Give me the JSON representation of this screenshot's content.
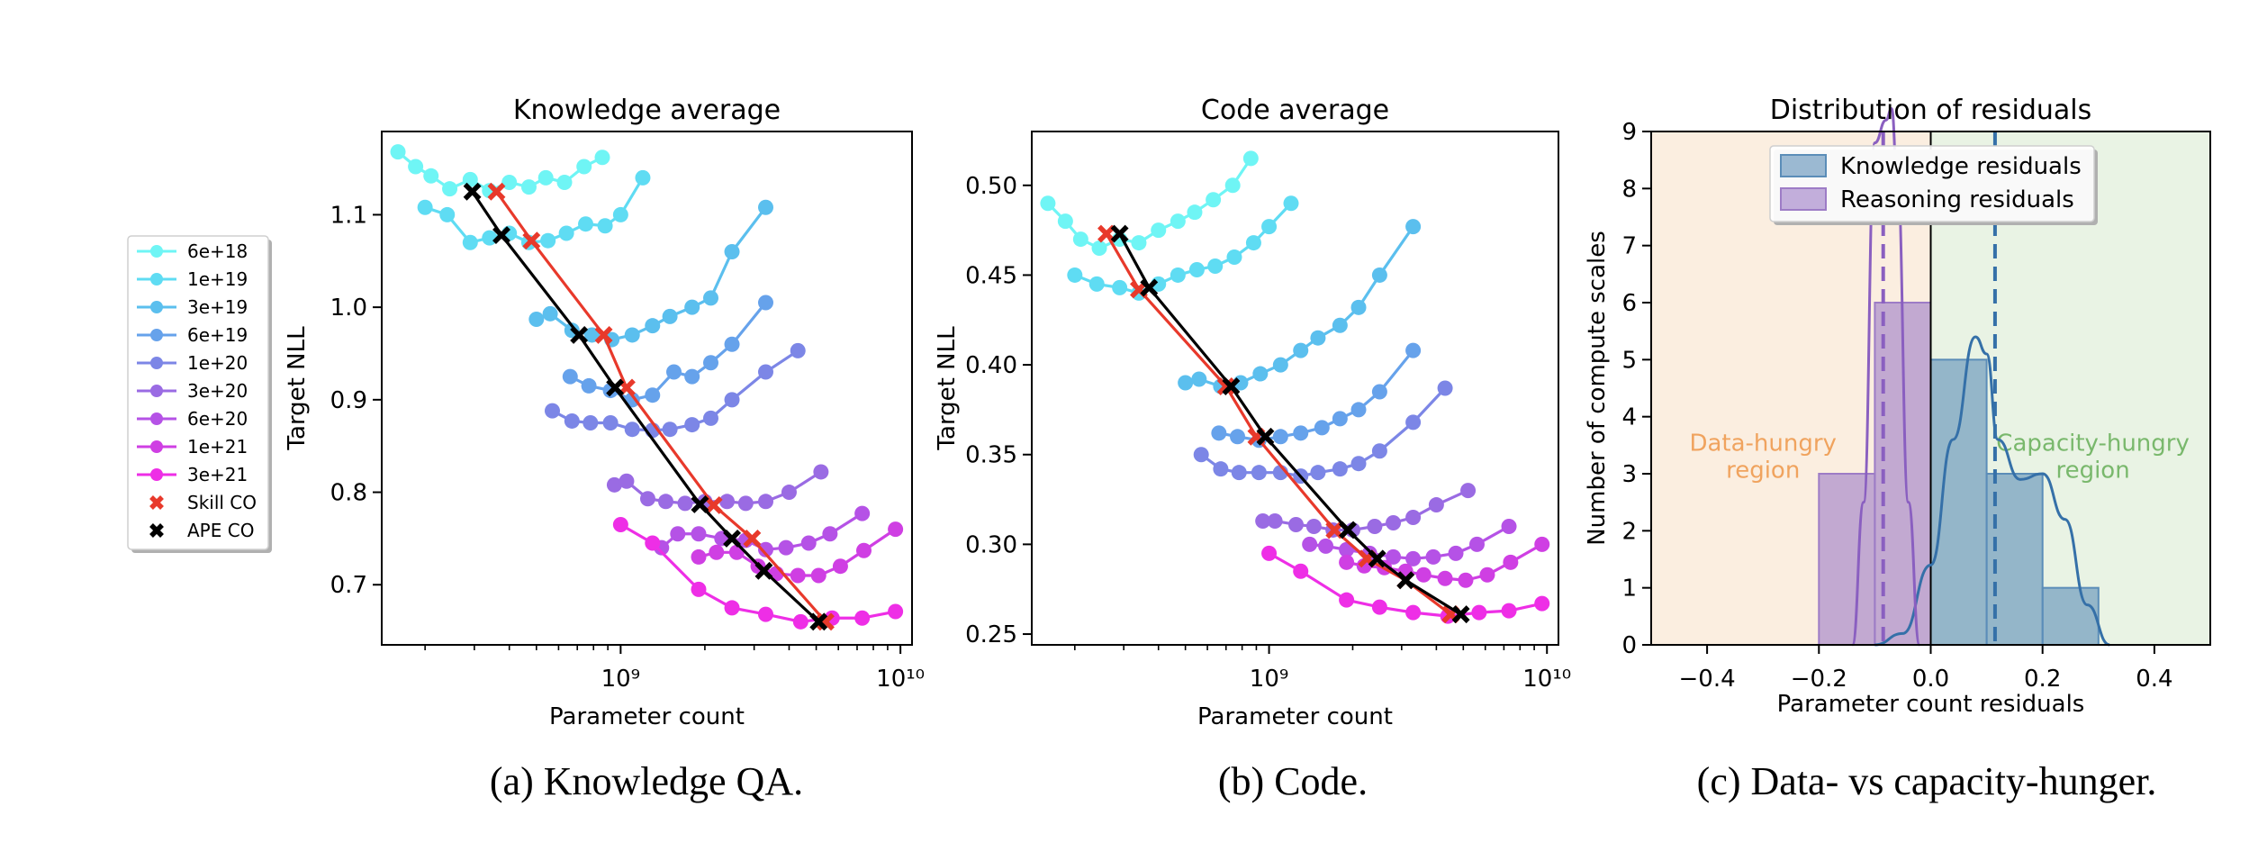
{
  "legend": {
    "entries": [
      {
        "label": "6e+18",
        "color": "#6ff5f5",
        "marker": "circle"
      },
      {
        "label": "1e+19",
        "color": "#5fdcf3",
        "marker": "circle"
      },
      {
        "label": "3e+19",
        "color": "#5bbfee",
        "marker": "circle"
      },
      {
        "label": "6e+19",
        "color": "#66a2eb",
        "marker": "circle"
      },
      {
        "label": "1e+20",
        "color": "#7c86e6",
        "marker": "circle"
      },
      {
        "label": "3e+20",
        "color": "#9a6be3",
        "marker": "circle"
      },
      {
        "label": "6e+20",
        "color": "#b552e6",
        "marker": "circle"
      },
      {
        "label": "1e+21",
        "color": "#cf3fe3",
        "marker": "circle"
      },
      {
        "label": "3e+21",
        "color": "#ee2ee6",
        "marker": "circle"
      },
      {
        "label": "Skill CO",
        "color": "#e8392b",
        "marker": "x"
      },
      {
        "label": "APE CO",
        "color": "#000000",
        "marker": "x"
      }
    ]
  },
  "captions": {
    "a": "(a) Knowledge QA.",
    "b": "(b) Code.",
    "c": "(c) Data- vs capacity-hunger."
  },
  "chart_data": [
    {
      "type": "line",
      "title": "Knowledge average",
      "xlabel": "Parameter count",
      "ylabel": "Target NLL",
      "xscale": "log",
      "xlim": [
        140000000.0,
        11000000000.0
      ],
      "ylim": [
        0.635,
        1.19
      ],
      "xticks": [
        {
          "v": 1000000000.0,
          "l": "10⁹"
        },
        {
          "v": 10000000000.0,
          "l": "10¹⁰"
        }
      ],
      "yticks": [
        {
          "v": 0.7,
          "l": "0.7"
        },
        {
          "v": 0.8,
          "l": "0.8"
        },
        {
          "v": 0.9,
          "l": "0.9"
        },
        {
          "v": 1.0,
          "l": "1.0"
        },
        {
          "v": 1.1,
          "l": "1.1"
        }
      ],
      "series": [
        {
          "name": "6e+18",
          "color": "#6ff5f5",
          "x": [
            160000000.0,
            185000000.0,
            210000000.0,
            245000000.0,
            290000000.0,
            340000000.0,
            400000000.0,
            470000000.0,
            540000000.0,
            630000000.0,
            740000000.0,
            860000000.0
          ],
          "y": [
            1.168,
            1.152,
            1.142,
            1.128,
            1.138,
            1.126,
            1.135,
            1.13,
            1.14,
            1.135,
            1.152,
            1.162
          ]
        },
        {
          "name": "1e+19",
          "color": "#5fdcf3",
          "x": [
            200000000.0,
            240000000.0,
            290000000.0,
            340000000.0,
            400000000.0,
            470000000.0,
            550000000.0,
            640000000.0,
            750000000.0,
            880000000.0,
            1000000000.0,
            1200000000.0
          ],
          "y": [
            1.108,
            1.1,
            1.07,
            1.075,
            1.08,
            1.07,
            1.072,
            1.08,
            1.09,
            1.088,
            1.1,
            1.14
          ]
        },
        {
          "name": "3e+19",
          "color": "#5bbfee",
          "x": [
            500000000.0,
            560000000.0,
            670000000.0,
            790000000.0,
            930000000.0,
            1100000000.0,
            1300000000.0,
            1500000000.0,
            1800000000.0,
            2100000000.0,
            2500000000.0,
            3300000000.0
          ],
          "y": [
            0.987,
            0.993,
            0.975,
            0.97,
            0.965,
            0.97,
            0.98,
            0.99,
            1.0,
            1.01,
            1.06,
            1.108
          ]
        },
        {
          "name": "6e+19",
          "color": "#66a2eb",
          "x": [
            660000000.0,
            770000000.0,
            920000000.0,
            1100000000.0,
            1300000000.0,
            1550000000.0,
            1800000000.0,
            2100000000.0,
            2500000000.0,
            3300000000.0
          ],
          "y": [
            0.925,
            0.915,
            0.91,
            0.9,
            0.905,
            0.93,
            0.925,
            0.94,
            0.96,
            1.005
          ]
        },
        {
          "name": "1e+20",
          "color": "#7c86e6",
          "x": [
            570000000.0,
            670000000.0,
            780000000.0,
            920000000.0,
            1100000000.0,
            1300000000.0,
            1500000000.0,
            1800000000.0,
            2100000000.0,
            2500000000.0,
            3300000000.0,
            4300000000.0
          ],
          "y": [
            0.888,
            0.877,
            0.875,
            0.875,
            0.868,
            0.867,
            0.868,
            0.873,
            0.88,
            0.9,
            0.93,
            0.953
          ]
        },
        {
          "name": "3e+20",
          "color": "#9a6be3",
          "x": [
            950000000.0,
            1050000000.0,
            1250000000.0,
            1450000000.0,
            1700000000.0,
            2000000000.0,
            2400000000.0,
            2800000000.0,
            3300000000.0,
            4000000000.0,
            5200000000.0
          ],
          "y": [
            0.808,
            0.812,
            0.793,
            0.79,
            0.788,
            0.79,
            0.79,
            0.788,
            0.79,
            0.8,
            0.822
          ]
        },
        {
          "name": "6e+20",
          "color": "#b552e6",
          "x": [
            1400000000.0,
            1600000000.0,
            1900000000.0,
            2300000000.0,
            2800000000.0,
            3300000000.0,
            3900000000.0,
            4700000000.0,
            5600000000.0,
            7300000000.0
          ],
          "y": [
            0.74,
            0.755,
            0.755,
            0.75,
            0.748,
            0.738,
            0.74,
            0.745,
            0.755,
            0.777
          ]
        },
        {
          "name": "1e+21",
          "color": "#cf3fe3",
          "x": [
            1900000000.0,
            2200000000.0,
            2600000000.0,
            3100000000.0,
            3600000000.0,
            4300000000.0,
            5100000000.0,
            6100000000.0,
            7400000000.0,
            9600000000.0
          ],
          "y": [
            0.73,
            0.735,
            0.735,
            0.72,
            0.712,
            0.71,
            0.71,
            0.72,
            0.737,
            0.76
          ]
        },
        {
          "name": "3e+21",
          "color": "#ee2ee6",
          "x": [
            1000000000.0,
            1300000000.0,
            1900000000.0,
            2500000000.0,
            3300000000.0,
            4400000000.0,
            5700000000.0,
            7300000000.0,
            9600000000.0
          ],
          "y": [
            0.765,
            0.745,
            0.695,
            0.675,
            0.668,
            0.66,
            0.664,
            0.664,
            0.671
          ]
        }
      ],
      "optimal_lines": [
        {
          "name": "Skill CO",
          "color": "#e8392b",
          "x": [
            360000000.0,
            480000000.0,
            870000000.0,
            1050000000.0,
            2150000000.0,
            2950000000.0,
            5400000000.0
          ],
          "y": [
            1.125,
            1.072,
            0.97,
            0.913,
            0.786,
            0.75,
            0.66
          ]
        },
        {
          "name": "APE CO",
          "color": "#000000",
          "x": [
            295000000.0,
            375000000.0,
            710000000.0,
            955000000.0,
            1920000000.0,
            2500000000.0,
            3250000000.0,
            5100000000.0
          ],
          "y": [
            1.125,
            1.078,
            0.97,
            0.913,
            0.787,
            0.75,
            0.715,
            0.66
          ]
        }
      ]
    },
    {
      "type": "line",
      "title": "Code average",
      "xlabel": "Parameter count",
      "ylabel": "Target NLL",
      "xscale": "log",
      "xlim": [
        140000000.0,
        11000000000.0
      ],
      "ylim": [
        0.244,
        0.53
      ],
      "xticks": [
        {
          "v": 1000000000.0,
          "l": "10⁹"
        },
        {
          "v": 10000000000.0,
          "l": "10¹⁰"
        }
      ],
      "yticks": [
        {
          "v": 0.25,
          "l": "0.25"
        },
        {
          "v": 0.3,
          "l": "0.30"
        },
        {
          "v": 0.35,
          "l": "0.35"
        },
        {
          "v": 0.4,
          "l": "0.40"
        },
        {
          "v": 0.45,
          "l": "0.45"
        },
        {
          "v": 0.5,
          "l": "0.50"
        }
      ],
      "series": [
        {
          "name": "6e+18",
          "color": "#6ff5f5",
          "x": [
            160000000.0,
            185000000.0,
            210000000.0,
            245000000.0,
            290000000.0,
            340000000.0,
            400000000.0,
            470000000.0,
            540000000.0,
            630000000.0,
            740000000.0,
            860000000.0
          ],
          "y": [
            0.49,
            0.48,
            0.47,
            0.465,
            0.47,
            0.468,
            0.475,
            0.48,
            0.485,
            0.492,
            0.5,
            0.515
          ]
        },
        {
          "name": "1e+19",
          "color": "#5fdcf3",
          "x": [
            200000000.0,
            240000000.0,
            290000000.0,
            340000000.0,
            400000000.0,
            470000000.0,
            550000000.0,
            640000000.0,
            750000000.0,
            880000000.0,
            1000000000.0,
            1200000000.0
          ],
          "y": [
            0.45,
            0.445,
            0.443,
            0.44,
            0.445,
            0.45,
            0.453,
            0.455,
            0.46,
            0.468,
            0.477,
            0.49
          ]
        },
        {
          "name": "3e+19",
          "color": "#5bbfee",
          "x": [
            500000000.0,
            560000000.0,
            670000000.0,
            790000000.0,
            930000000.0,
            1100000000.0,
            1300000000.0,
            1500000000.0,
            1800000000.0,
            2100000000.0,
            2500000000.0,
            3300000000.0
          ],
          "y": [
            0.39,
            0.392,
            0.388,
            0.39,
            0.395,
            0.4,
            0.408,
            0.415,
            0.422,
            0.432,
            0.45,
            0.477
          ]
        },
        {
          "name": "6e+19",
          "color": "#66a2eb",
          "x": [
            660000000.0,
            770000000.0,
            920000000.0,
            1100000000.0,
            1300000000.0,
            1550000000.0,
            1800000000.0,
            2100000000.0,
            2500000000.0,
            3300000000.0
          ],
          "y": [
            0.362,
            0.36,
            0.358,
            0.36,
            0.362,
            0.365,
            0.37,
            0.375,
            0.385,
            0.408
          ]
        },
        {
          "name": "1e+20",
          "color": "#7c86e6",
          "x": [
            570000000.0,
            670000000.0,
            780000000.0,
            920000000.0,
            1100000000.0,
            1300000000.0,
            1500000000.0,
            1800000000.0,
            2100000000.0,
            2500000000.0,
            3300000000.0,
            4300000000.0
          ],
          "y": [
            0.35,
            0.342,
            0.34,
            0.34,
            0.34,
            0.338,
            0.34,
            0.342,
            0.345,
            0.352,
            0.368,
            0.387
          ]
        },
        {
          "name": "3e+20",
          "color": "#9a6be3",
          "x": [
            950000000.0,
            1050000000.0,
            1250000000.0,
            1450000000.0,
            1700000000.0,
            2000000000.0,
            2400000000.0,
            2800000000.0,
            3300000000.0,
            4000000000.0,
            5200000000.0
          ],
          "y": [
            0.313,
            0.313,
            0.311,
            0.31,
            0.308,
            0.308,
            0.31,
            0.312,
            0.315,
            0.322,
            0.33
          ]
        },
        {
          "name": "6e+20",
          "color": "#b552e6",
          "x": [
            1400000000.0,
            1600000000.0,
            1900000000.0,
            2300000000.0,
            2800000000.0,
            3300000000.0,
            3900000000.0,
            4700000000.0,
            5600000000.0,
            7300000000.0
          ],
          "y": [
            0.3,
            0.299,
            0.297,
            0.295,
            0.293,
            0.292,
            0.293,
            0.295,
            0.3,
            0.31
          ]
        },
        {
          "name": "1e+21",
          "color": "#cf3fe3",
          "x": [
            1900000000.0,
            2200000000.0,
            2600000000.0,
            3100000000.0,
            3600000000.0,
            4300000000.0,
            5100000000.0,
            6100000000.0,
            7400000000.0,
            9600000000.0
          ],
          "y": [
            0.29,
            0.288,
            0.287,
            0.285,
            0.283,
            0.281,
            0.28,
            0.283,
            0.29,
            0.3
          ]
        },
        {
          "name": "3e+21",
          "color": "#ee2ee6",
          "x": [
            1000000000.0,
            1300000000.0,
            1900000000.0,
            2500000000.0,
            3300000000.0,
            4400000000.0,
            5700000000.0,
            7300000000.0,
            9600000000.0
          ],
          "y": [
            0.295,
            0.285,
            0.269,
            0.265,
            0.262,
            0.26,
            0.262,
            0.263,
            0.267
          ]
        }
      ],
      "optimal_lines": [
        {
          "name": "Skill CO",
          "color": "#e8392b",
          "x": [
            260000000.0,
            340000000.0,
            700000000.0,
            900000000.0,
            1720000000.0,
            2250000000.0,
            3100000000.0,
            4500000000.0
          ],
          "y": [
            0.473,
            0.442,
            0.388,
            0.36,
            0.308,
            0.292,
            0.28,
            0.261
          ]
        },
        {
          "name": "APE CO",
          "color": "#000000",
          "x": [
            290000000.0,
            370000000.0,
            730000000.0,
            970000000.0,
            1920000000.0,
            2450000000.0,
            3100000000.0,
            4900000000.0
          ],
          "y": [
            0.473,
            0.443,
            0.388,
            0.36,
            0.308,
            0.292,
            0.28,
            0.261
          ]
        }
      ]
    },
    {
      "type": "histogram",
      "title": "Distribution of residuals",
      "xlabel": "Parameter count residuals",
      "ylabel": "Number of compute scales",
      "xlim": [
        -0.5,
        0.5
      ],
      "ylim": [
        0,
        9
      ],
      "xticks": [
        {
          "v": -0.4,
          "l": "−0.4"
        },
        {
          "v": -0.2,
          "l": "−0.2"
        },
        {
          "v": 0.0,
          "l": "0.0"
        },
        {
          "v": 0.2,
          "l": "0.2"
        },
        {
          "v": 0.4,
          "l": "0.4"
        }
      ],
      "yticks": [
        {
          "v": 0,
          "l": "0"
        },
        {
          "v": 1,
          "l": "1"
        },
        {
          "v": 2,
          "l": "2"
        },
        {
          "v": 3,
          "l": "3"
        },
        {
          "v": 4,
          "l": "4"
        },
        {
          "v": 5,
          "l": "5"
        },
        {
          "v": 6,
          "l": "6"
        },
        {
          "v": 7,
          "l": "7"
        },
        {
          "v": 8,
          "l": "8"
        },
        {
          "v": 9,
          "l": "9"
        }
      ],
      "regions": [
        {
          "label": "Data-hungry region",
          "lines": [
            "Data-hungry",
            "region"
          ],
          "x0": -0.5,
          "x1": 0.0,
          "color": "#fbeee0",
          "text_color": "#f0a35e"
        },
        {
          "label": "Capacity-hungry region",
          "lines": [
            "Capacity-hungry",
            "region"
          ],
          "x0": 0.0,
          "x1": 0.5,
          "color": "#e9f3e4",
          "text_color": "#79b86c"
        }
      ],
      "series": [
        {
          "name": "Knowledge residuals",
          "color": "#5b8db8",
          "bins": [
            [
              0.0,
              0.1,
              5
            ],
            [
              0.1,
              0.2,
              3
            ],
            [
              0.2,
              0.3,
              1
            ]
          ],
          "mean": 0.115,
          "kde": [
            [
              -0.1,
              0.0
            ],
            [
              -0.05,
              0.2
            ],
            [
              0.0,
              1.4
            ],
            [
              0.04,
              3.6
            ],
            [
              0.08,
              5.4
            ],
            [
              0.1,
              5.1
            ],
            [
              0.12,
              3.6
            ],
            [
              0.16,
              2.9
            ],
            [
              0.2,
              3.0
            ],
            [
              0.24,
              2.2
            ],
            [
              0.28,
              0.7
            ],
            [
              0.32,
              0.0
            ]
          ]
        },
        {
          "name": "Reasoning residuals",
          "color": "#9d7cc6",
          "bins": [
            [
              -0.2,
              -0.1,
              3
            ],
            [
              -0.1,
              0.0,
              6
            ]
          ],
          "mean": -0.085,
          "kde": [
            [
              -0.14,
              0.0
            ],
            [
              -0.12,
              2.5
            ],
            [
              -0.1,
              8.8
            ],
            [
              -0.08,
              9.2
            ],
            [
              -0.07,
              9.4
            ],
            [
              -0.06,
              8.2
            ],
            [
              -0.04,
              2.5
            ],
            [
              -0.02,
              0.0
            ]
          ]
        }
      ]
    }
  ]
}
